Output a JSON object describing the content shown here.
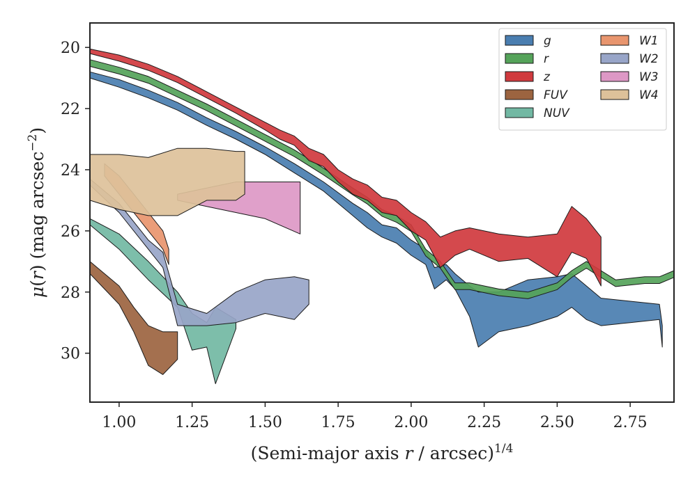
{
  "chart_data": {
    "type": "area",
    "xlabel": "(Semi-major axis r / arcsec)^1/4",
    "xlabel_parts": {
      "pre": "(Semi-major axis ",
      "var": "r",
      "mid": " / arcsec)",
      "sup": "1/4"
    },
    "ylabel": "μ(r) (mag arcsec^−2)",
    "ylabel_parts": {
      "mu": "μ",
      "open": "(",
      "var": "r",
      "close": ") (mag arcsec",
      "sup": "−2",
      "end": ")"
    },
    "xlim": [
      0.9,
      2.9
    ],
    "ylim": [
      31.6,
      19.2
    ],
    "y_inverted": true,
    "xticks": [
      1.0,
      1.25,
      1.5,
      1.75,
      2.0,
      2.25,
      2.5,
      2.75
    ],
    "xtick_labels": [
      "1.00",
      "1.25",
      "1.50",
      "1.75",
      "2.00",
      "2.25",
      "2.50",
      "2.75"
    ],
    "yticks": [
      20,
      22,
      24,
      26,
      28,
      30
    ],
    "ytick_labels": [
      "20",
      "22",
      "24",
      "26",
      "28",
      "30"
    ],
    "grid": false,
    "legend": {
      "placement": "top-right",
      "columns": 2
    },
    "series": [
      {
        "name": "g",
        "color": "#4a7eb0",
        "x": [
          0.9,
          1.0,
          1.1,
          1.2,
          1.3,
          1.4,
          1.5,
          1.6,
          1.7,
          1.8,
          1.85,
          1.9,
          1.95,
          2.0,
          2.05,
          2.08,
          2.12,
          2.15,
          2.2,
          2.23,
          2.3,
          2.4,
          2.5,
          2.55,
          2.6,
          2.65,
          2.75,
          2.85,
          2.86
        ],
        "y_upper": [
          20.8,
          21.05,
          21.4,
          21.8,
          22.3,
          22.75,
          23.25,
          23.8,
          24.4,
          25.1,
          25.4,
          25.8,
          25.9,
          26.3,
          26.6,
          27.2,
          27.1,
          27.4,
          27.8,
          28.0,
          28.0,
          27.6,
          27.5,
          27.4,
          27.8,
          28.2,
          28.3,
          28.4,
          29.1
        ],
        "y_lower": [
          21.0,
          21.3,
          21.65,
          22.05,
          22.55,
          23.0,
          23.5,
          24.1,
          24.7,
          25.5,
          25.9,
          26.2,
          26.4,
          26.8,
          27.1,
          27.9,
          27.6,
          27.9,
          28.8,
          29.8,
          29.3,
          29.1,
          28.8,
          28.5,
          28.9,
          29.1,
          29.0,
          28.9,
          29.8
        ]
      },
      {
        "name": "r",
        "color": "#55a35a",
        "x": [
          0.9,
          1.0,
          1.1,
          1.2,
          1.3,
          1.4,
          1.5,
          1.6,
          1.7,
          1.8,
          1.85,
          1.9,
          1.95,
          2.0,
          2.05,
          2.1,
          2.15,
          2.2,
          2.3,
          2.4,
          2.5,
          2.55,
          2.6,
          2.7,
          2.8,
          2.85,
          2.9
        ],
        "y_upper": [
          20.4,
          20.65,
          20.95,
          21.4,
          21.85,
          22.35,
          22.85,
          23.35,
          23.95,
          24.6,
          24.9,
          25.3,
          25.5,
          25.8,
          26.6,
          27.0,
          27.7,
          27.7,
          27.9,
          28.0,
          27.7,
          27.3,
          27.0,
          27.6,
          27.5,
          27.5,
          27.3
        ]
      },
      {
        "name": "z",
        "color": "#d03a3e",
        "x": [
          0.9,
          1.0,
          1.1,
          1.2,
          1.3,
          1.4,
          1.5,
          1.55,
          1.6,
          1.65,
          1.7,
          1.75,
          1.8,
          1.85,
          1.9,
          1.95,
          2.0,
          2.05,
          2.1,
          2.15,
          2.2,
          2.3,
          2.4,
          2.5,
          2.55,
          2.6,
          2.65
        ],
        "y_upper": [
          20.05,
          20.25,
          20.55,
          20.95,
          21.45,
          21.95,
          22.45,
          22.7,
          22.9,
          23.3,
          23.5,
          24.0,
          24.3,
          24.5,
          24.9,
          25.0,
          25.4,
          25.7,
          26.2,
          26.0,
          25.9,
          26.1,
          26.2,
          26.1,
          25.2,
          25.6,
          26.2
        ],
        "y_lower": [
          20.2,
          20.45,
          20.75,
          21.15,
          21.65,
          22.15,
          22.7,
          23.0,
          23.2,
          23.7,
          23.9,
          24.4,
          24.8,
          25.0,
          25.4,
          25.5,
          26.0,
          26.3,
          27.2,
          26.8,
          26.6,
          27.0,
          26.9,
          27.5,
          26.7,
          26.9,
          27.8
        ]
      },
      {
        "name": "FUV",
        "color": "#9c6440",
        "x": [
          0.9,
          1.0,
          1.05,
          1.1,
          1.15,
          1.2
        ],
        "y_upper": [
          27.0,
          27.8,
          28.5,
          29.1,
          29.3,
          29.3
        ],
        "y_lower": [
          27.4,
          28.4,
          29.3,
          30.4,
          30.7,
          30.2
        ]
      },
      {
        "name": "NUV",
        "color": "#72b8a3",
        "x": [
          0.9,
          1.0,
          1.1,
          1.2,
          1.25,
          1.3,
          1.33,
          1.4
        ],
        "y_upper": [
          25.6,
          26.1,
          27.0,
          28.0,
          28.7,
          29.0,
          28.5,
          28.9
        ],
        "y_lower": [
          25.8,
          26.6,
          27.6,
          28.5,
          29.9,
          29.8,
          31.0,
          29.2
        ]
      },
      {
        "name": "W1",
        "color": "#e8956e",
        "x": [
          0.95,
          1.0,
          1.05,
          1.1,
          1.15,
          1.17
        ],
        "y_upper": [
          23.8,
          24.2,
          24.8,
          25.4,
          26.0,
          26.6
        ],
        "y_lower": [
          24.2,
          24.8,
          25.4,
          26.0,
          26.6,
          27.1
        ]
      },
      {
        "name": "W2",
        "color": "#98a5c8",
        "x": [
          0.9,
          1.0,
          1.1,
          1.15,
          1.2,
          1.3,
          1.4,
          1.5,
          1.6,
          1.65
        ],
        "y_upper": [
          24.3,
          25.1,
          26.3,
          26.7,
          28.4,
          28.7,
          28.0,
          27.6,
          27.5,
          27.6
        ],
        "y_lower": [
          24.5,
          25.4,
          26.6,
          27.2,
          29.1,
          29.1,
          29.0,
          28.7,
          28.9,
          28.4
        ]
      },
      {
        "name": "W3",
        "color": "#dd98c5",
        "x": [
          1.2,
          1.3,
          1.4,
          1.5,
          1.62
        ],
        "y_upper": [
          24.8,
          24.6,
          24.4,
          24.4,
          24.4
        ],
        "y_lower": [
          25.0,
          25.2,
          25.4,
          25.6,
          26.1
        ]
      },
      {
        "name": "W4",
        "color": "#ddc19a",
        "x": [
          0.9,
          1.0,
          1.1,
          1.2,
          1.3,
          1.4,
          1.43
        ],
        "y_upper": [
          23.5,
          23.5,
          23.6,
          23.3,
          23.3,
          23.4,
          23.4
        ],
        "y_lower": [
          25.0,
          25.3,
          25.5,
          25.5,
          25.0,
          25.0,
          24.8
        ]
      }
    ]
  }
}
